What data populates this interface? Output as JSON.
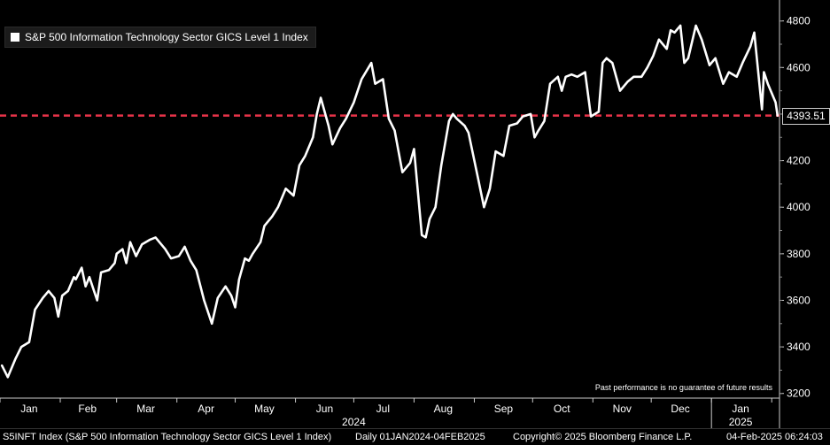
{
  "chart_data": {
    "type": "line",
    "title": "",
    "series": [
      {
        "name": "S&P 500 Information Technology Sector GICS Level 1 Index",
        "color": "#ffffff",
        "points": [
          [
            "2024-01-02",
            3320
          ],
          [
            "2024-01-05",
            3270
          ],
          [
            "2024-01-09",
            3350
          ],
          [
            "2024-01-12",
            3400
          ],
          [
            "2024-01-16",
            3420
          ],
          [
            "2024-01-19",
            3560
          ],
          [
            "2024-01-23",
            3610
          ],
          [
            "2024-01-26",
            3640
          ],
          [
            "2024-01-29",
            3610
          ],
          [
            "2024-01-31",
            3530
          ],
          [
            "2024-02-02",
            3620
          ],
          [
            "2024-02-05",
            3640
          ],
          [
            "2024-02-08",
            3700
          ],
          [
            "2024-02-09",
            3690
          ],
          [
            "2024-02-12",
            3740
          ],
          [
            "2024-02-14",
            3660
          ],
          [
            "2024-02-16",
            3700
          ],
          [
            "2024-02-20",
            3600
          ],
          [
            "2024-02-22",
            3720
          ],
          [
            "2024-02-26",
            3730
          ],
          [
            "2024-02-29",
            3760
          ],
          [
            "2024-03-01",
            3800
          ],
          [
            "2024-03-04",
            3820
          ],
          [
            "2024-03-06",
            3760
          ],
          [
            "2024-03-08",
            3850
          ],
          [
            "2024-03-11",
            3790
          ],
          [
            "2024-03-14",
            3840
          ],
          [
            "2024-03-18",
            3860
          ],
          [
            "2024-03-21",
            3870
          ],
          [
            "2024-03-26",
            3820
          ],
          [
            "2024-03-29",
            3780
          ],
          [
            "2024-04-02",
            3790
          ],
          [
            "2024-04-05",
            3830
          ],
          [
            "2024-04-08",
            3770
          ],
          [
            "2024-04-11",
            3730
          ],
          [
            "2024-04-15",
            3600
          ],
          [
            "2024-04-19",
            3500
          ],
          [
            "2024-04-22",
            3610
          ],
          [
            "2024-04-26",
            3660
          ],
          [
            "2024-04-29",
            3620
          ],
          [
            "2024-05-01",
            3570
          ],
          [
            "2024-05-03",
            3690
          ],
          [
            "2024-05-06",
            3780
          ],
          [
            "2024-05-08",
            3770
          ],
          [
            "2024-05-10",
            3800
          ],
          [
            "2024-05-14",
            3850
          ],
          [
            "2024-05-16",
            3920
          ],
          [
            "2024-05-20",
            3960
          ],
          [
            "2024-05-23",
            4000
          ],
          [
            "2024-05-27",
            4080
          ],
          [
            "2024-05-31",
            4050
          ],
          [
            "2024-06-03",
            4180
          ],
          [
            "2024-06-06",
            4220
          ],
          [
            "2024-06-10",
            4300
          ],
          [
            "2024-06-12",
            4400
          ],
          [
            "2024-06-14",
            4470
          ],
          [
            "2024-06-18",
            4350
          ],
          [
            "2024-06-20",
            4270
          ],
          [
            "2024-06-24",
            4340
          ],
          [
            "2024-06-27",
            4380
          ],
          [
            "2024-07-01",
            4450
          ],
          [
            "2024-07-05",
            4550
          ],
          [
            "2024-07-10",
            4620
          ],
          [
            "2024-07-12",
            4530
          ],
          [
            "2024-07-16",
            4550
          ],
          [
            "2024-07-19",
            4380
          ],
          [
            "2024-07-22",
            4330
          ],
          [
            "2024-07-24",
            4240
          ],
          [
            "2024-07-26",
            4150
          ],
          [
            "2024-07-30",
            4190
          ],
          [
            "2024-08-01",
            4250
          ],
          [
            "2024-08-05",
            3880
          ],
          [
            "2024-08-07",
            3870
          ],
          [
            "2024-08-09",
            3950
          ],
          [
            "2024-08-12",
            4000
          ],
          [
            "2024-08-15",
            4180
          ],
          [
            "2024-08-19",
            4370
          ],
          [
            "2024-08-21",
            4400
          ],
          [
            "2024-08-23",
            4380
          ],
          [
            "2024-08-27",
            4350
          ],
          [
            "2024-08-29",
            4320
          ],
          [
            "2024-09-03",
            4120
          ],
          [
            "2024-09-06",
            4000
          ],
          [
            "2024-09-09",
            4080
          ],
          [
            "2024-09-12",
            4240
          ],
          [
            "2024-09-16",
            4220
          ],
          [
            "2024-09-19",
            4350
          ],
          [
            "2024-09-23",
            4360
          ],
          [
            "2024-09-26",
            4390
          ],
          [
            "2024-09-30",
            4400
          ],
          [
            "2024-10-02",
            4300
          ],
          [
            "2024-10-04",
            4330
          ],
          [
            "2024-10-07",
            4370
          ],
          [
            "2024-10-10",
            4530
          ],
          [
            "2024-10-14",
            4560
          ],
          [
            "2024-10-16",
            4500
          ],
          [
            "2024-10-18",
            4560
          ],
          [
            "2024-10-21",
            4570
          ],
          [
            "2024-10-24",
            4560
          ],
          [
            "2024-10-28",
            4580
          ],
          [
            "2024-10-31",
            4390
          ],
          [
            "2024-11-04",
            4410
          ],
          [
            "2024-11-06",
            4620
          ],
          [
            "2024-11-08",
            4640
          ],
          [
            "2024-11-11",
            4620
          ],
          [
            "2024-11-15",
            4500
          ],
          [
            "2024-11-19",
            4540
          ],
          [
            "2024-11-22",
            4560
          ],
          [
            "2024-11-26",
            4560
          ],
          [
            "2024-11-29",
            4600
          ],
          [
            "2024-12-02",
            4650
          ],
          [
            "2024-12-05",
            4720
          ],
          [
            "2024-12-09",
            4680
          ],
          [
            "2024-12-11",
            4760
          ],
          [
            "2024-12-13",
            4750
          ],
          [
            "2024-12-16",
            4780
          ],
          [
            "2024-12-18",
            4620
          ],
          [
            "2024-12-20",
            4640
          ],
          [
            "2024-12-24",
            4780
          ],
          [
            "2024-12-27",
            4720
          ],
          [
            "2024-12-31",
            4610
          ],
          [
            "2025-01-03",
            4640
          ],
          [
            "2025-01-07",
            4530
          ],
          [
            "2025-01-10",
            4580
          ],
          [
            "2025-01-14",
            4560
          ],
          [
            "2025-01-17",
            4620
          ],
          [
            "2025-01-21",
            4690
          ],
          [
            "2025-01-23",
            4750
          ],
          [
            "2025-01-27",
            4420
          ],
          [
            "2025-01-28",
            4580
          ],
          [
            "2025-01-30",
            4530
          ],
          [
            "2025-02-03",
            4450
          ],
          [
            "2025-02-04",
            4393.51
          ]
        ]
      }
    ],
    "last_value": 4393.51,
    "last_value_label": "4393.51",
    "reference_line": {
      "value": 4393.51,
      "color": "#e8334a",
      "style": "dashed"
    },
    "y_ticks": [
      3200,
      3400,
      3600,
      3800,
      4000,
      4200,
      4400,
      4600,
      4800
    ],
    "y_tick_labels": [
      "3200",
      "3400",
      "3600",
      "3800",
      "4000",
      "4200",
      "4400",
      "4600",
      "4800"
    ],
    "ylim": [
      3180,
      4890
    ],
    "xlim": [
      "2024-01-01",
      "2025-02-05"
    ],
    "x_month_labels": [
      {
        "label": "Jan",
        "date": "2024-01-16"
      },
      {
        "label": "Feb",
        "date": "2024-02-15"
      },
      {
        "label": "Mar",
        "date": "2024-03-16"
      },
      {
        "label": "Apr",
        "date": "2024-04-16"
      },
      {
        "label": "May",
        "date": "2024-05-16"
      },
      {
        "label": "Jun",
        "date": "2024-06-16"
      },
      {
        "label": "Jul",
        "date": "2024-07-16"
      },
      {
        "label": "Aug",
        "date": "2024-08-16"
      },
      {
        "label": "Sep",
        "date": "2024-09-16"
      },
      {
        "label": "Oct",
        "date": "2024-10-16"
      },
      {
        "label": "Nov",
        "date": "2024-11-16"
      },
      {
        "label": "Dec",
        "date": "2024-12-16"
      },
      {
        "label": "Jan",
        "date": "2025-01-16"
      }
    ],
    "x_year_labels": [
      {
        "label": "2024",
        "date": "2024-07-01"
      },
      {
        "label": "2025",
        "date": "2025-01-16"
      }
    ],
    "month_tick_dates": [
      "2024-01-01",
      "2024-02-01",
      "2024-03-01",
      "2024-04-01",
      "2024-05-01",
      "2024-06-01",
      "2024-07-01",
      "2024-08-01",
      "2024-09-01",
      "2024-10-01",
      "2024-11-01",
      "2024-12-01",
      "2025-01-01",
      "2025-02-01"
    ],
    "year_separator_date": "2025-01-01",
    "grid": false,
    "legend_position": "top-left"
  },
  "legend": {
    "label": "S&P 500 Information Technology Sector GICS Level 1 Index"
  },
  "disclaimer": "Past performance is no guarantee of future results",
  "footer": {
    "ticker": "S5INFT Index (S&P 500 Information Technology Sector GICS Level 1 Index)",
    "range": "Daily 01JAN2024-04FEB2025",
    "copyright": "Copyright© 2025 Bloomberg Finance L.P.",
    "timestamp": "04-Feb-2025 06:24:03"
  }
}
